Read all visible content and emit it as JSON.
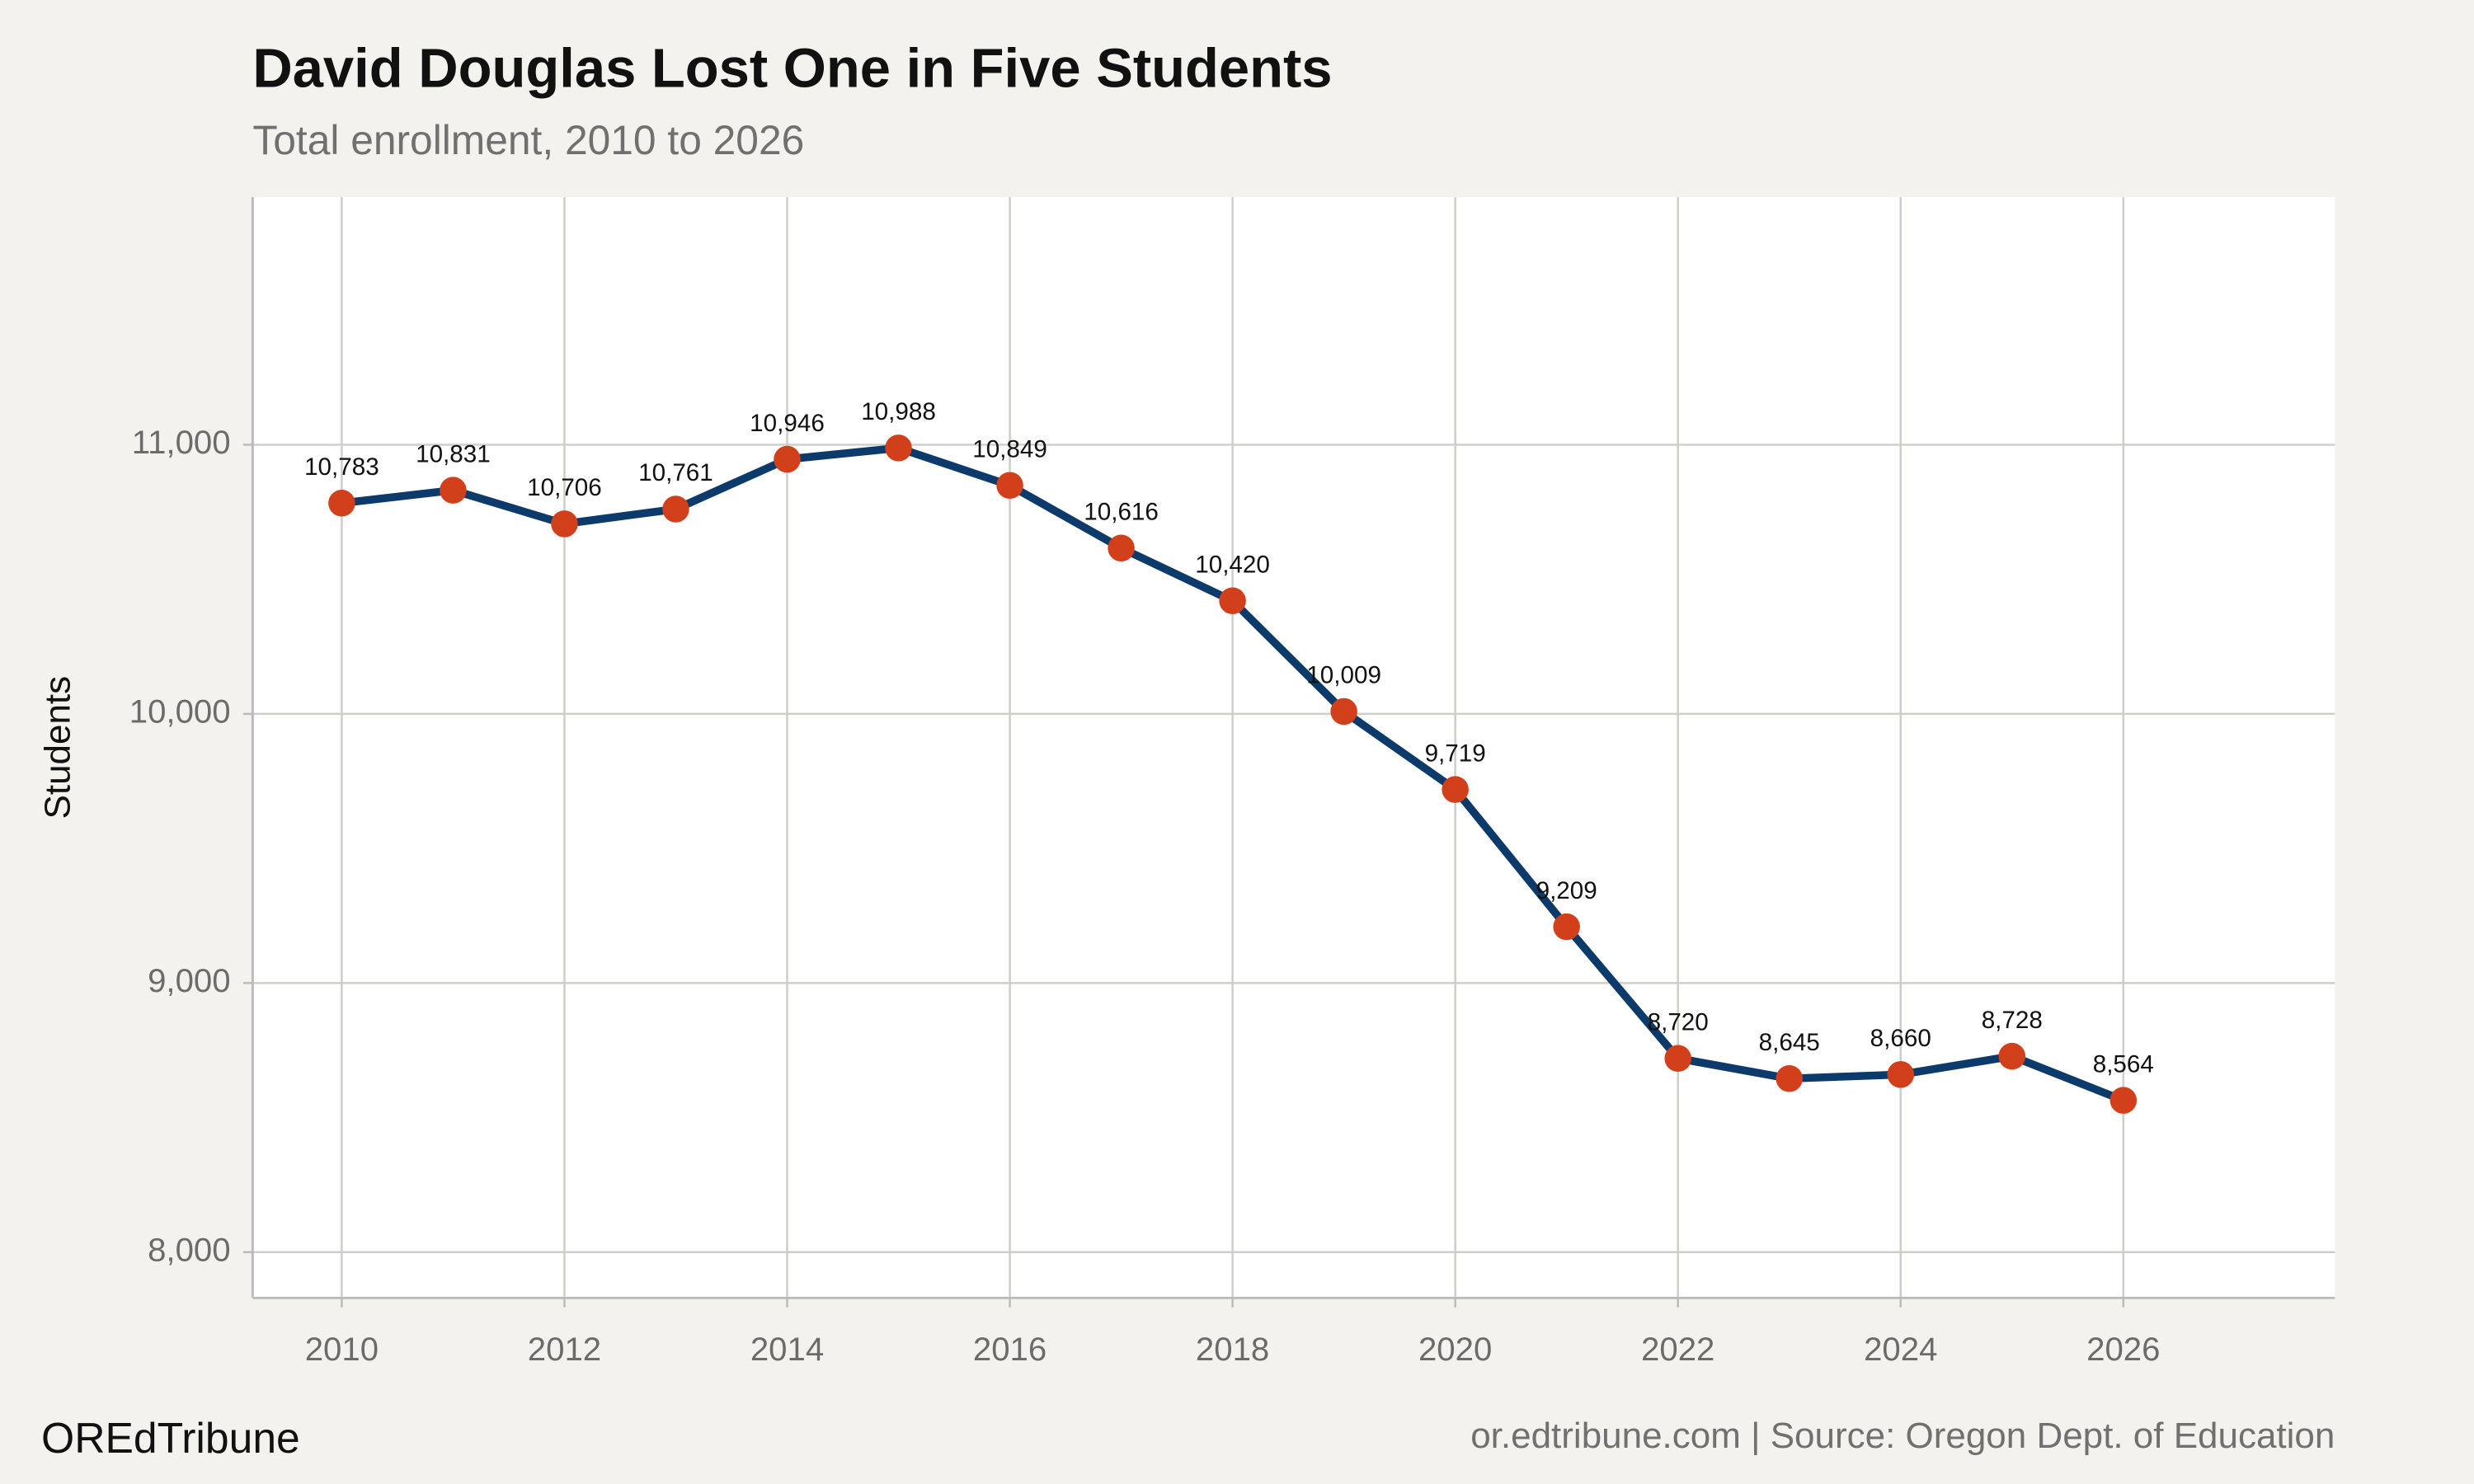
{
  "chart_data": {
    "type": "line",
    "title": "David Douglas Lost One in Five Students",
    "subtitle": "Total enrollment, 2010 to 2026",
    "y_label": "Students",
    "brand": "OREdTribune",
    "source": "or.edtribune.com | Source: Oregon Dept. of Education",
    "x": [
      2010,
      2011,
      2012,
      2013,
      2014,
      2015,
      2016,
      2017,
      2018,
      2019,
      2020,
      2021,
      2022,
      2023,
      2024,
      2025,
      2026
    ],
    "values": [
      10783,
      10831,
      10706,
      10761,
      10946,
      10988,
      10849,
      10616,
      10420,
      10009,
      9719,
      9209,
      8720,
      8645,
      8660,
      8728,
      8564
    ],
    "value_labels": [
      "10,783",
      "10,831",
      "10,706",
      "10,761",
      "10,946",
      "10,988",
      "10,849",
      "10,616",
      "10,420",
      "10,009",
      "9,719",
      "9,209",
      "8,720",
      "8,645",
      "8,660",
      "8,728",
      "8,564"
    ],
    "color": "#0b3a6b",
    "marker_color": "#d1401a",
    "xlim": [
      2009.2,
      2027.9
    ],
    "ylim": [
      7830,
      11920
    ],
    "xticks": [
      2010,
      2012,
      2014,
      2016,
      2018,
      2020,
      2022,
      2024,
      2026
    ],
    "yticks": [
      {
        "value": 8000,
        "label": "8,000"
      },
      {
        "value": 9000,
        "label": "9,000"
      },
      {
        "value": 10000,
        "label": "10,000"
      },
      {
        "value": 11000,
        "label": "11,000"
      }
    ],
    "grid": true
  }
}
